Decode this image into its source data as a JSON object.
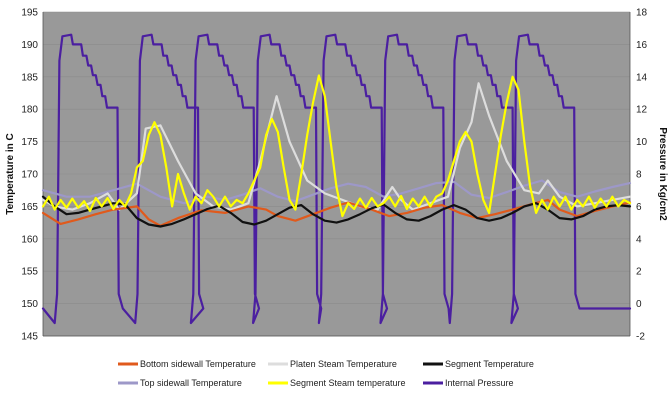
{
  "chart_data": {
    "type": "line",
    "title": "",
    "background": "#999999",
    "xlabel": "",
    "ylabel": "Temperature in C",
    "ylabel_right": "Pressure in Kg/cm2",
    "y_left": {
      "min": 145,
      "max": 195,
      "ticks": [
        "195",
        "190",
        "185",
        "180",
        "175",
        "170",
        "165",
        "160",
        "155",
        "150",
        "145"
      ]
    },
    "y_right": {
      "min": -2,
      "max": 18,
      "ticks": [
        "18",
        "16",
        "14",
        "12",
        "10",
        "8",
        "6",
        "4",
        "2",
        "0",
        "-2"
      ]
    },
    "x_range": [
      0,
      100
    ],
    "cycle_starts": [
      2,
      15.7,
      25.2,
      35.8,
      47.0,
      57.5,
      69.3,
      79.8
    ],
    "legend_location": "bottom",
    "series": [
      {
        "name": "Bottom sidewall Temperature",
        "color": "#e05a1c",
        "axis": "left",
        "points": [
          [
            0,
            164
          ],
          [
            3,
            162.3
          ],
          [
            6,
            163
          ],
          [
            9,
            163.8
          ],
          [
            12,
            164.5
          ],
          [
            16,
            165
          ],
          [
            18,
            163
          ],
          [
            20,
            162
          ],
          [
            23,
            163.2
          ],
          [
            27,
            164.4
          ],
          [
            31,
            164
          ],
          [
            35,
            165
          ],
          [
            38,
            164.5
          ],
          [
            40,
            163.5
          ],
          [
            43,
            162.8
          ],
          [
            46,
            163.8
          ],
          [
            49,
            164.8
          ],
          [
            52,
            165.6
          ],
          [
            56,
            164.5
          ],
          [
            59,
            163.5
          ],
          [
            62,
            164
          ],
          [
            65,
            164.8
          ],
          [
            68,
            165.2
          ],
          [
            71,
            164
          ],
          [
            74,
            163.2
          ],
          [
            77,
            163.8
          ],
          [
            80,
            164.5
          ],
          [
            83,
            165.3
          ],
          [
            86,
            166
          ],
          [
            88,
            164.5
          ],
          [
            91,
            163.5
          ],
          [
            94,
            164.3
          ],
          [
            97,
            165
          ],
          [
            100,
            165.6
          ]
        ]
      },
      {
        "name": "Top sidewall Temperature",
        "color": "#9d98c8",
        "axis": "left",
        "points": [
          [
            0,
            167.5
          ],
          [
            4,
            166.5
          ],
          [
            8,
            166.5
          ],
          [
            12,
            167.5
          ],
          [
            16,
            168.5
          ],
          [
            20,
            166.5
          ],
          [
            24,
            165.5
          ],
          [
            28,
            166.5
          ],
          [
            31,
            166
          ],
          [
            34,
            166.8
          ],
          [
            37,
            167.8
          ],
          [
            40,
            166.5
          ],
          [
            43,
            165.8
          ],
          [
            46,
            166.8
          ],
          [
            49,
            167.8
          ],
          [
            52,
            168.5
          ],
          [
            55,
            168
          ],
          [
            58,
            166.5
          ],
          [
            61,
            167
          ],
          [
            64,
            167.8
          ],
          [
            67,
            168.6
          ],
          [
            70,
            168.8
          ],
          [
            73,
            166.8
          ],
          [
            76,
            166.3
          ],
          [
            79,
            167.2
          ],
          [
            82,
            168.2
          ],
          [
            85,
            169
          ],
          [
            88,
            167.2
          ],
          [
            91,
            166.5
          ],
          [
            94,
            167.3
          ],
          [
            97,
            168
          ],
          [
            100,
            168.6
          ]
        ]
      },
      {
        "name": "Platen Steam Temperature",
        "color": "#dddddd",
        "axis": "left",
        "points": [
          [
            0,
            166
          ],
          [
            2,
            165
          ],
          [
            5,
            164.5
          ],
          [
            8,
            165.5
          ],
          [
            11,
            167
          ],
          [
            13,
            164.5
          ],
          [
            16,
            167
          ],
          [
            17.5,
            177
          ],
          [
            20,
            177.5
          ],
          [
            23,
            172
          ],
          [
            26,
            167
          ],
          [
            29,
            165
          ],
          [
            32,
            164.5
          ],
          [
            35,
            165.5
          ],
          [
            37,
            172
          ],
          [
            39.8,
            182
          ],
          [
            42,
            175
          ],
          [
            45,
            169
          ],
          [
            48,
            167
          ],
          [
            51,
            166
          ],
          [
            54,
            165
          ],
          [
            57,
            164.5
          ],
          [
            59.5,
            168
          ],
          [
            61,
            166
          ],
          [
            63,
            164.5
          ],
          [
            66,
            165.5
          ],
          [
            69,
            166.5
          ],
          [
            71,
            174
          ],
          [
            73,
            178
          ],
          [
            74.2,
            184
          ],
          [
            76,
            179
          ],
          [
            79,
            172
          ],
          [
            82,
            167.5
          ],
          [
            84.5,
            167
          ],
          [
            86,
            169
          ],
          [
            88,
            166.5
          ],
          [
            91,
            165
          ],
          [
            94,
            165.5
          ],
          [
            97,
            166
          ],
          [
            100,
            166.5
          ]
        ]
      },
      {
        "name": "Segment Steam temperature",
        "color": "#ffff00",
        "axis": "left",
        "points": [
          [
            0,
            165
          ],
          [
            1,
            166.5
          ],
          [
            2,
            164.5
          ],
          [
            3,
            166
          ],
          [
            4,
            164.8
          ],
          [
            5,
            166.2
          ],
          [
            6,
            164.8
          ],
          [
            7,
            165.8
          ],
          [
            8,
            164.3
          ],
          [
            9,
            166.3
          ],
          [
            10,
            165
          ],
          [
            11,
            166.3
          ],
          [
            12,
            164.6
          ],
          [
            13,
            166
          ],
          [
            14,
            165
          ],
          [
            15,
            167
          ],
          [
            16,
            171
          ],
          [
            17,
            172
          ],
          [
            18,
            176
          ],
          [
            19,
            178
          ],
          [
            20,
            176
          ],
          [
            21,
            171
          ],
          [
            22,
            165
          ],
          [
            23,
            170
          ],
          [
            24,
            167
          ],
          [
            25,
            164.5
          ],
          [
            26,
            166.5
          ],
          [
            27,
            165.5
          ],
          [
            28,
            167.5
          ],
          [
            29,
            166.5
          ],
          [
            30,
            165
          ],
          [
            31,
            166.5
          ],
          [
            32,
            165
          ],
          [
            33,
            166
          ],
          [
            34,
            165.5
          ],
          [
            35,
            167
          ],
          [
            36,
            169
          ],
          [
            37,
            171
          ],
          [
            38,
            176
          ],
          [
            39,
            178.5
          ],
          [
            40,
            176.5
          ],
          [
            41,
            171
          ],
          [
            42,
            166
          ],
          [
            43,
            164.5
          ],
          [
            44,
            170
          ],
          [
            45,
            176
          ],
          [
            46,
            181
          ],
          [
            47,
            185.2
          ],
          [
            48,
            182
          ],
          [
            49,
            175
          ],
          [
            50,
            168
          ],
          [
            51,
            163.5
          ],
          [
            52,
            165.5
          ],
          [
            53,
            164.6
          ],
          [
            54,
            166.2
          ],
          [
            55,
            164.8
          ],
          [
            56,
            166.3
          ],
          [
            57,
            165
          ],
          [
            58,
            165.5
          ],
          [
            59,
            166.5
          ],
          [
            60,
            165
          ],
          [
            61,
            166.6
          ],
          [
            62,
            164.6
          ],
          [
            63,
            166.2
          ],
          [
            64,
            165
          ],
          [
            65,
            166.5
          ],
          [
            66,
            165
          ],
          [
            67,
            166.5
          ],
          [
            68,
            167
          ],
          [
            69,
            169
          ],
          [
            70,
            172
          ],
          [
            71,
            175
          ],
          [
            72,
            176.5
          ],
          [
            73,
            175
          ],
          [
            74,
            170
          ],
          [
            75,
            166
          ],
          [
            76,
            164
          ],
          [
            77,
            170
          ],
          [
            78,
            176
          ],
          [
            79,
            181
          ],
          [
            80,
            185
          ],
          [
            81,
            183
          ],
          [
            82,
            175
          ],
          [
            83,
            168
          ],
          [
            84,
            164
          ],
          [
            85,
            166
          ],
          [
            86,
            164.5
          ],
          [
            87,
            166.5
          ],
          [
            88,
            165
          ],
          [
            89,
            166.5
          ],
          [
            90,
            164.5
          ],
          [
            91,
            166
          ],
          [
            92,
            165
          ],
          [
            93,
            166.5
          ],
          [
            94,
            164.8
          ],
          [
            95,
            166.2
          ],
          [
            96,
            165
          ],
          [
            97,
            166.5
          ],
          [
            98,
            165
          ],
          [
            99,
            166
          ],
          [
            100,
            165.5
          ]
        ]
      },
      {
        "name": "Segment Temperature",
        "color": "#111111",
        "axis": "left",
        "points": [
          [
            0,
            166.5
          ],
          [
            2,
            165
          ],
          [
            4,
            163.8
          ],
          [
            6,
            164
          ],
          [
            8,
            164.5
          ],
          [
            10,
            165
          ],
          [
            12,
            165.5
          ],
          [
            14,
            165.3
          ],
          [
            16,
            163.2
          ],
          [
            18,
            162.2
          ],
          [
            20,
            161.9
          ],
          [
            22,
            162.3
          ],
          [
            24,
            163
          ],
          [
            26,
            163.8
          ],
          [
            28,
            164.6
          ],
          [
            30,
            165.1
          ],
          [
            32,
            164
          ],
          [
            34,
            162.6
          ],
          [
            36,
            162.2
          ],
          [
            38,
            162.8
          ],
          [
            40,
            163.8
          ],
          [
            42,
            164.8
          ],
          [
            44,
            165.2
          ],
          [
            46,
            163.8
          ],
          [
            48,
            162.8
          ],
          [
            50,
            162.5
          ],
          [
            52,
            163
          ],
          [
            54,
            163.8
          ],
          [
            56,
            164.7
          ],
          [
            58,
            165.3
          ],
          [
            60,
            164
          ],
          [
            62,
            163
          ],
          [
            64,
            162.8
          ],
          [
            66,
            163.5
          ],
          [
            68,
            164.5
          ],
          [
            70,
            165.2
          ],
          [
            72,
            164.5
          ],
          [
            74,
            163.2
          ],
          [
            76,
            162.8
          ],
          [
            78,
            163.2
          ],
          [
            80,
            164
          ],
          [
            82,
            165
          ],
          [
            84,
            165.5
          ],
          [
            86,
            164.5
          ],
          [
            88,
            163.2
          ],
          [
            90,
            163
          ],
          [
            92,
            163.5
          ],
          [
            94,
            164.5
          ],
          [
            96,
            165
          ],
          [
            98,
            165.2
          ],
          [
            100,
            165
          ]
        ]
      },
      {
        "name": "Internal Pressure",
        "color": "#4b1fa0",
        "axis": "right",
        "profile": [
          [
            0,
            -1.2
          ],
          [
            0.4,
            0.6
          ],
          [
            0.8,
            15
          ],
          [
            1.3,
            16.5
          ],
          [
            2.8,
            16.6
          ],
          [
            3.1,
            16
          ],
          [
            4.5,
            16
          ],
          [
            4.8,
            15.3
          ],
          [
            5.4,
            15.3
          ],
          [
            5.7,
            14.7
          ],
          [
            6.2,
            14.7
          ],
          [
            6.5,
            14.1
          ],
          [
            7,
            14.1
          ],
          [
            7.3,
            13.5
          ],
          [
            7.8,
            13.5
          ],
          [
            8.1,
            12.8
          ],
          [
            8.6,
            12.8
          ],
          [
            8.9,
            12.1
          ],
          [
            10.7,
            12.1
          ],
          [
            10.9,
            0.6
          ],
          [
            11.6,
            -0.3
          ]
        ]
      }
    ]
  }
}
